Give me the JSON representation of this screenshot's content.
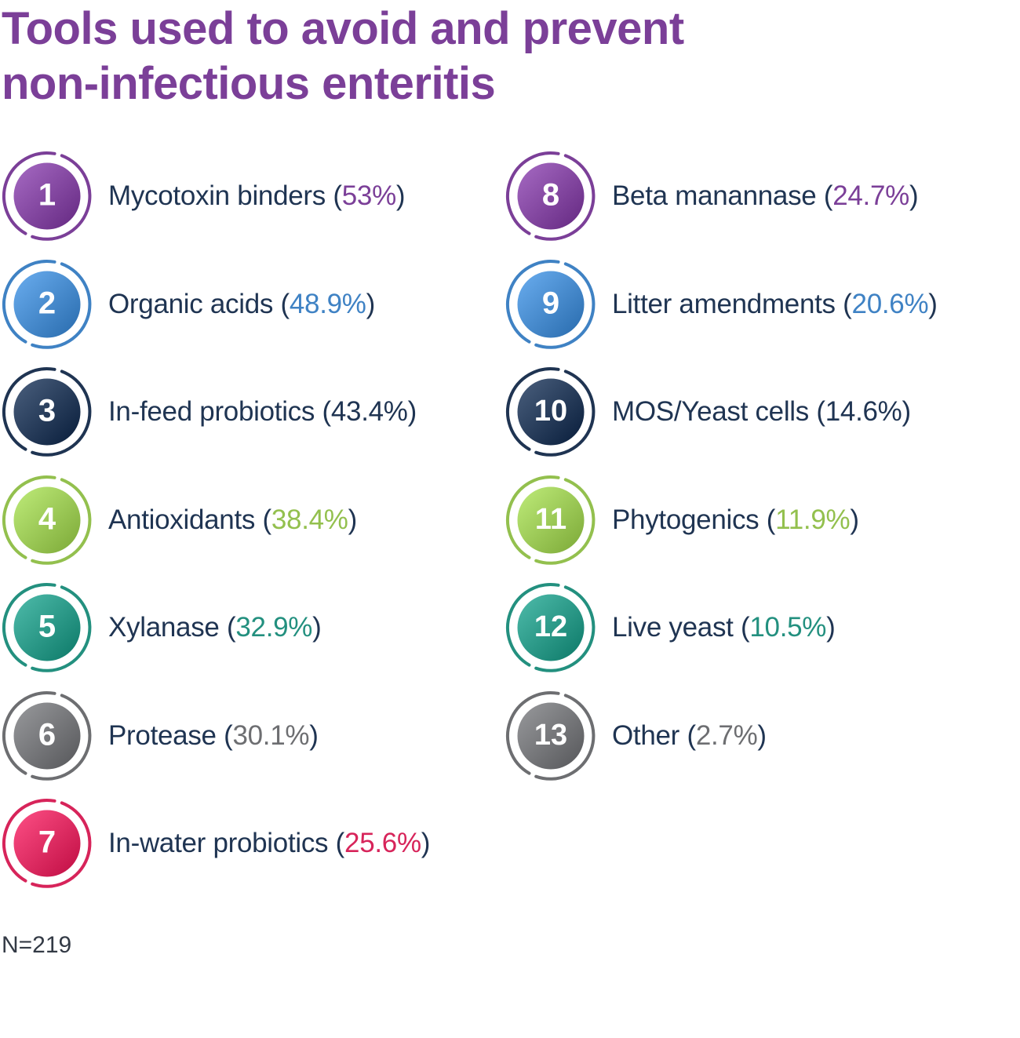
{
  "title_line1": "Tools used to avoid and prevent",
  "title_line2": "non-infectious enteritis",
  "note": "N=219",
  "colors": {
    "purple": "#7b3f98",
    "blue": "#3f82c4",
    "navy": "#1f3452",
    "green": "#93c04e",
    "teal": "#23907f",
    "gray": "#6d6e71",
    "red": "#d7245a"
  },
  "chart_data": {
    "type": "table",
    "title": "Tools used to avoid and prevent non-infectious enteritis",
    "unit": "%",
    "items": [
      {
        "rank": "1",
        "name": "Mycotoxin binders",
        "value": 53,
        "pct_label": "53%",
        "color": "#7b3f98",
        "pct_colored": true
      },
      {
        "rank": "2",
        "name": "Organic acids",
        "value": 48.9,
        "pct_label": "48.9%",
        "color": "#3f82c4",
        "pct_colored": true
      },
      {
        "rank": "3",
        "name": "In-feed probiotics",
        "value": 43.4,
        "pct_label": "43.4%",
        "color": "#1f3452",
        "pct_colored": true
      },
      {
        "rank": "4",
        "name": "Antioxidants",
        "value": 38.4,
        "pct_label": "38.4%",
        "color": "#93c04e",
        "pct_colored": true
      },
      {
        "rank": "5",
        "name": "Xylanase",
        "value": 32.9,
        "pct_label": "32.9%",
        "color": "#23907f",
        "pct_colored": true
      },
      {
        "rank": "6",
        "name": "Protease",
        "value": 30.1,
        "pct_label": "30.1%",
        "color": "#6d6e71",
        "pct_colored": true
      },
      {
        "rank": "7",
        "name": "In-water probiotics",
        "value": 25.6,
        "pct_label": "25.6%",
        "color": "#d7245a",
        "pct_colored": true
      },
      {
        "rank": "8",
        "name": "Beta manannase",
        "value": 24.7,
        "pct_label": "24.7%",
        "color": "#7b3f98",
        "pct_colored": true
      },
      {
        "rank": "9",
        "name": "Litter amendments",
        "value": 20.6,
        "pct_label": "20.6%",
        "color": "#3f82c4",
        "pct_colored": true
      },
      {
        "rank": "10",
        "name": "MOS/Yeast cells",
        "value": 14.6,
        "pct_label": "14.6%",
        "color": "#1f3452",
        "pct_colored": true
      },
      {
        "rank": "11",
        "name": "Phytogenics",
        "value": 11.9,
        "pct_label": "11.9%",
        "color": "#93c04e",
        "pct_colored": true
      },
      {
        "rank": "12",
        "name": "Live yeast",
        "value": 10.5,
        "pct_label": "10.5%",
        "color": "#23907f",
        "pct_colored": true
      },
      {
        "rank": "13",
        "name": "Other",
        "value": 2.7,
        "pct_label": "2.7%",
        "color": "#6d6e71",
        "pct_colored": true
      }
    ]
  }
}
